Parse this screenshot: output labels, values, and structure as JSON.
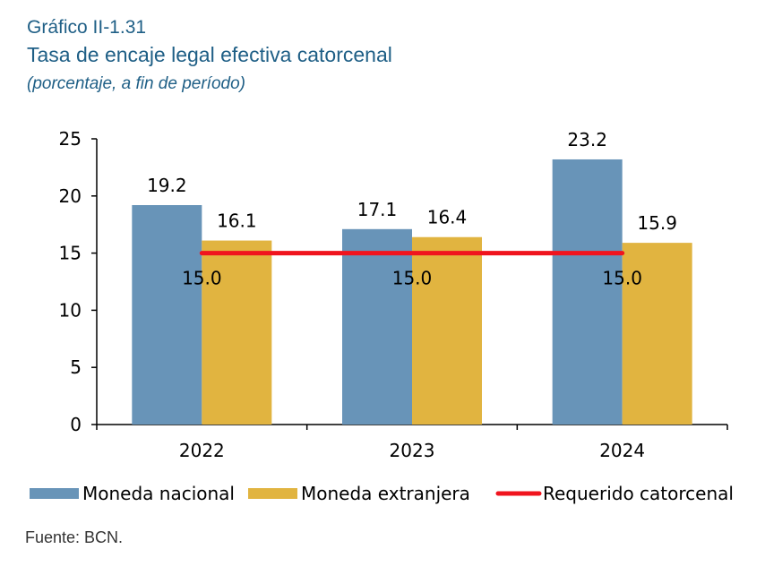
{
  "header": {
    "kicker": "Gráfico II-1.31",
    "title": "Tasa de encaje legal efectiva catorcenal",
    "subtitle": "(porcentaje, a fin de período)"
  },
  "source": "Fuente: BCN.",
  "chart_data": {
    "type": "bar",
    "categories": [
      "2022",
      "2023",
      "2024"
    ],
    "series": [
      {
        "name": "Moneda nacional",
        "values": [
          19.2,
          17.1,
          23.2
        ],
        "labels": [
          "19.2",
          "17.1",
          "23.2"
        ],
        "color": "#6894b8"
      },
      {
        "name": "Moneda extranjera",
        "values": [
          16.1,
          16.4,
          15.9
        ],
        "labels": [
          "16.1",
          "16.4",
          "15.9"
        ],
        "color": "#e1b440"
      },
      {
        "name": "Requerido catorcenal",
        "type": "line",
        "values": [
          15.0,
          15.0,
          15.0
        ],
        "labels": [
          "15.0",
          "15.0",
          "15.0"
        ],
        "color": "#f0141e"
      }
    ],
    "ylim": [
      0,
      25
    ],
    "yticks": [
      "0",
      "5",
      "10",
      "15",
      "20",
      "25"
    ],
    "grid": false,
    "legend": "bottom"
  }
}
